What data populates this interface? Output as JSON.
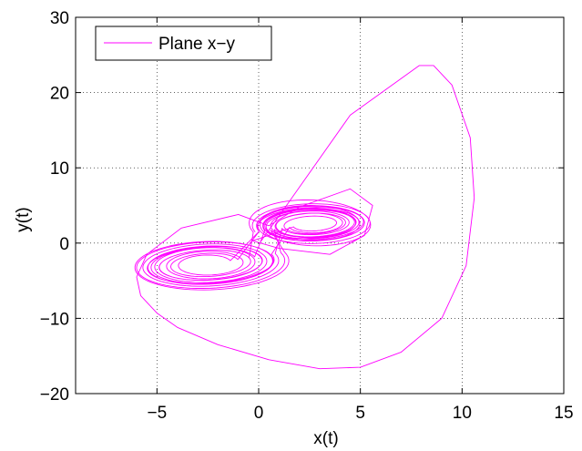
{
  "chart_data": {
    "type": "line",
    "title": "",
    "xlabel": "x(t)",
    "ylabel": "y(t)",
    "xlim": [
      -9,
      15
    ],
    "ylim": [
      -20,
      30
    ],
    "xticks": [
      -5,
      0,
      5,
      10,
      15
    ],
    "xtick_labels": [
      "−5",
      "0",
      "5",
      "10",
      "15"
    ],
    "yticks": [
      -20,
      -10,
      0,
      10,
      20,
      30
    ],
    "ytick_labels": [
      "−20",
      "−10",
      "0",
      "10",
      "20",
      "30"
    ],
    "grid": true,
    "legend_position": "top-left",
    "colors": {
      "series": "#ff00ff",
      "axes": "#000000",
      "grid": "#000000"
    },
    "series": [
      {
        "name": "Plane x−y",
        "color": "#ff00ff",
        "description_points": [
          [
            0.05,
            0.0
          ],
          [
            1.5,
            5.5
          ],
          [
            4.5,
            17.0
          ],
          [
            7.9,
            23.6
          ],
          [
            8.6,
            23.6
          ],
          [
            9.5,
            21.0
          ],
          [
            10.4,
            14.0
          ],
          [
            10.6,
            6.0
          ],
          [
            10.2,
            -3.0
          ],
          [
            9.0,
            -10.0
          ],
          [
            7.0,
            -14.5
          ],
          [
            5.0,
            -16.5
          ],
          [
            3.0,
            -16.7
          ],
          [
            0.5,
            -15.5
          ],
          [
            -2.0,
            -13.5
          ],
          [
            -4.0,
            -11.2
          ],
          [
            -5.0,
            -9.3
          ],
          [
            -5.8,
            -7.0
          ],
          [
            -6.0,
            -4.5
          ],
          [
            -5.5,
            -1.5
          ],
          [
            -3.8,
            2.0
          ],
          [
            -1.0,
            3.8
          ],
          [
            0.5,
            2.3
          ],
          [
            2.0,
            4.8
          ],
          [
            4.5,
            7.2
          ],
          [
            5.6,
            5.0
          ],
          [
            5.2,
            1.0
          ],
          [
            3.5,
            -1.5
          ],
          [
            1.0,
            -0.7
          ],
          [
            -0.3,
            0.3
          ]
        ]
      }
    ]
  }
}
